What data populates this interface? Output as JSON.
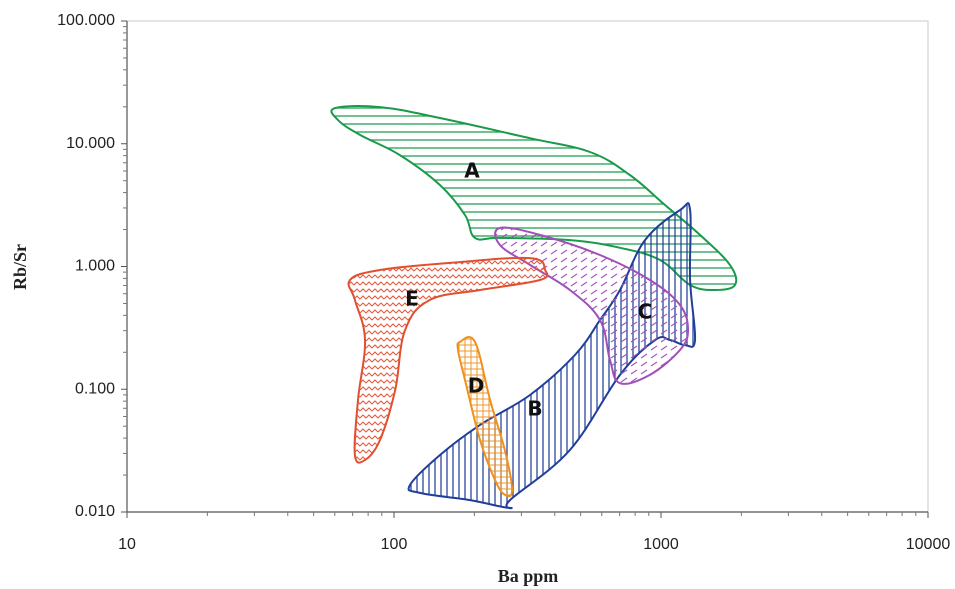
{
  "chart_data": {
    "type": "region",
    "x_label": "Ba ppm",
    "y_label": "Rb/Sr",
    "log_x": true,
    "log_y": true,
    "xlim": [
      10,
      10000
    ],
    "ylim": [
      0.01,
      100
    ],
    "xticks": [
      10,
      100,
      1000,
      10000
    ],
    "yticks": [
      {
        "value": 0.01,
        "label": "0.010"
      },
      {
        "value": 0.1,
        "label": "0.100"
      },
      {
        "value": 1,
        "label": "1.000"
      },
      {
        "value": 10,
        "label": "10.000"
      },
      {
        "value": 100,
        "label": "100.000"
      }
    ],
    "series": [
      {
        "name": "A",
        "color": "#1a9a4a",
        "hatch": "horizontal",
        "x": [
          60.1,
          88.6,
          148.6,
          323,
          542,
          765,
          1035,
          1400,
          1812,
          1893,
          1592,
          1285,
          991,
          702,
          456,
          249,
          201,
          184.5,
          148.6,
          105,
          74.6,
          61.7
        ],
        "values": [
          19.5,
          19.9,
          16.2,
          11.1,
          8.57,
          5.56,
          3.17,
          1.81,
          1.03,
          0.707,
          0.643,
          0.707,
          1.13,
          1.42,
          1.64,
          1.71,
          1.71,
          2.63,
          4.61,
          8.1,
          11.8,
          15.6
        ]
      },
      {
        "name": "B",
        "color": "#1f3f99",
        "hatch": "vertical",
        "x": [
          114.8,
          148.6,
          210,
          323,
          476,
          591,
          702,
          871,
          1178,
          1285,
          1285,
          1341,
          1230,
          1081,
          950,
          702,
          456,
          272,
          272,
          193,
          125
        ],
        "values": [
          0.0166,
          0.0291,
          0.0512,
          0.0898,
          0.19,
          0.366,
          0.643,
          1.64,
          2.88,
          2.88,
          0.776,
          0.252,
          0.229,
          0.252,
          0.252,
          0.131,
          0.032,
          0.0125,
          0.0108,
          0.0125,
          0.0143
        ]
      },
      {
        "name": "C",
        "color": "#a050b8",
        "hatch": "dashed",
        "x": [
          249,
          352,
          591,
          909,
          1178,
          1262,
          1178,
          909,
          702,
          644,
          591,
          456,
          323,
          249
        ],
        "values": [
          2.06,
          1.81,
          1.24,
          0.776,
          0.486,
          0.304,
          0.209,
          0.131,
          0.112,
          0.173,
          0.366,
          0.643,
          1.03,
          1.5
        ]
      },
      {
        "name": "D",
        "color": "#f0901e",
        "hatch": "grid",
        "x": [
          176.7,
          201,
          229,
          260,
          277,
          260,
          239,
          210,
          184.5,
          173.7
        ],
        "values": [
          0.243,
          0.243,
          0.0817,
          0.032,
          0.0151,
          0.0138,
          0.0182,
          0.0386,
          0.119,
          0.209
        ]
      },
      {
        "name": "E",
        "color": "#e05030",
        "hatch": "zigzag",
        "x": [
          68.4,
          88.6,
          162,
          323,
          368,
          352,
          210,
          136,
          110,
          101,
          88.6,
          77.9,
          71.4,
          73.3,
          77.9,
          71.4
        ],
        "values": [
          0.776,
          0.936,
          1.07,
          1.17,
          0.936,
          0.776,
          0.643,
          0.533,
          0.304,
          0.0986,
          0.0386,
          0.0265,
          0.0291,
          0.0817,
          0.252,
          0.533
        ]
      }
    ]
  }
}
